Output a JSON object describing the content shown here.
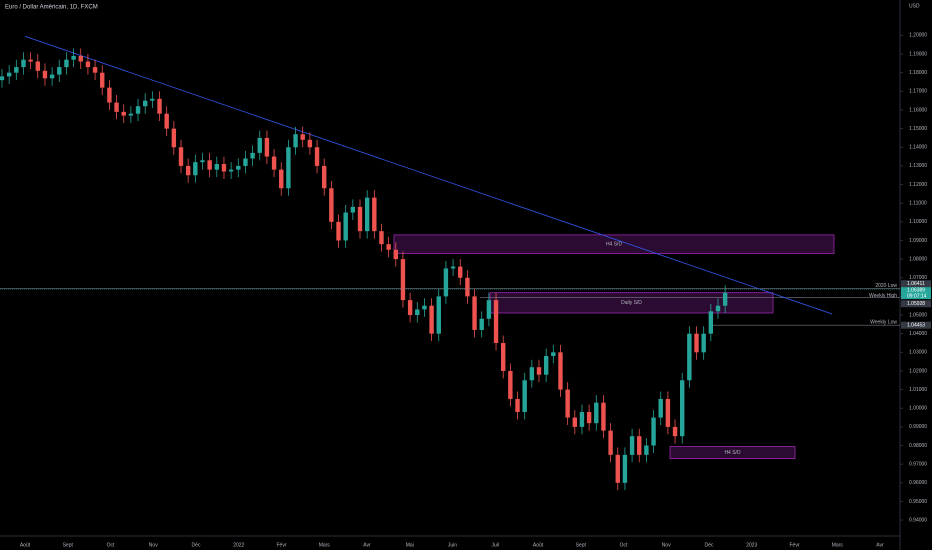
{
  "chart_data": {
    "type": "candlestick",
    "title": "Euro / Dollar Américain, 1D, FXCM",
    "currency": "USD",
    "categories": [
      "Août",
      "Sept",
      "Oct",
      "Nov",
      "Déc",
      "2022",
      "Févr",
      "Mars",
      "Avr",
      "Mai",
      "Juin",
      "Juil",
      "Août",
      "Sept",
      "Oct",
      "Nov",
      "Déc",
      "2023",
      "Févr",
      "Mars",
      "Avr"
    ],
    "up_color": "#26a69a",
    "down_color": "#ef5350",
    "ylim": [
      0.932,
      1.219
    ],
    "yticks": [
      {
        "value": 0.94,
        "label": "0.94000"
      },
      {
        "value": 0.95,
        "label": "0.95000"
      },
      {
        "value": 0.96,
        "label": "0.96000"
      },
      {
        "value": 0.97,
        "label": "0.97000"
      },
      {
        "value": 0.98,
        "label": "0.98000"
      },
      {
        "value": 0.99,
        "label": "0.99000"
      },
      {
        "value": 1.0,
        "label": "1.00000"
      },
      {
        "value": 1.01,
        "label": "1.01000"
      },
      {
        "value": 1.02,
        "label": "1.02000"
      },
      {
        "value": 1.03,
        "label": "1.03000"
      },
      {
        "value": 1.04,
        "label": "1.04000"
      },
      {
        "value": 1.05,
        "label": "1.05000"
      },
      {
        "value": 1.06,
        "label": "1.06000"
      },
      {
        "value": 1.07,
        "label": "1.07000"
      },
      {
        "value": 1.08,
        "label": "1.08000"
      },
      {
        "value": 1.09,
        "label": "1.09000"
      },
      {
        "value": 1.1,
        "label": "1.10000"
      },
      {
        "value": 1.11,
        "label": "1.11000"
      },
      {
        "value": 1.12,
        "label": "1.12000"
      },
      {
        "value": 1.13,
        "label": "1.13000"
      },
      {
        "value": 1.14,
        "label": "1.14000"
      },
      {
        "value": 1.15,
        "label": "1.15000"
      },
      {
        "value": 1.16,
        "label": "1.16000"
      },
      {
        "value": 1.17,
        "label": "1.17000"
      },
      {
        "value": 1.18,
        "label": "1.18000"
      },
      {
        "value": 1.19,
        "label": "1.19000"
      },
      {
        "value": 1.2,
        "label": "1.20000"
      }
    ],
    "candles": [
      [
        1.176,
        1.182,
        1.172,
        1.178
      ],
      [
        1.178,
        1.184,
        1.174,
        1.18
      ],
      [
        1.18,
        1.187,
        1.176,
        1.183
      ],
      [
        1.183,
        1.191,
        1.179,
        1.187
      ],
      [
        1.187,
        1.191,
        1.182,
        1.186
      ],
      [
        1.186,
        1.19,
        1.177,
        1.181
      ],
      [
        1.181,
        1.185,
        1.173,
        1.177
      ],
      [
        1.177,
        1.183,
        1.173,
        1.179
      ],
      [
        1.179,
        1.187,
        1.175,
        1.183
      ],
      [
        1.183,
        1.191,
        1.179,
        1.187
      ],
      [
        1.187,
        1.193,
        1.183,
        1.189
      ],
      [
        1.189,
        1.193,
        1.182,
        1.186
      ],
      [
        1.186,
        1.19,
        1.179,
        1.183
      ],
      [
        1.183,
        1.187,
        1.176,
        1.18
      ],
      [
        1.18,
        1.184,
        1.168,
        1.172
      ],
      [
        1.172,
        1.176,
        1.16,
        1.164
      ],
      [
        1.164,
        1.168,
        1.155,
        1.159
      ],
      [
        1.159,
        1.163,
        1.153,
        1.157
      ],
      [
        1.157,
        1.162,
        1.153,
        1.158
      ],
      [
        1.158,
        1.166,
        1.154,
        1.162
      ],
      [
        1.162,
        1.169,
        1.158,
        1.165
      ],
      [
        1.165,
        1.17,
        1.161,
        1.166
      ],
      [
        1.166,
        1.17,
        1.154,
        1.158
      ],
      [
        1.158,
        1.162,
        1.146,
        1.15
      ],
      [
        1.15,
        1.154,
        1.136,
        1.14
      ],
      [
        1.14,
        1.144,
        1.126,
        1.13
      ],
      [
        1.13,
        1.134,
        1.121,
        1.125
      ],
      [
        1.125,
        1.136,
        1.121,
        1.132
      ],
      [
        1.132,
        1.137,
        1.128,
        1.133
      ],
      [
        1.133,
        1.137,
        1.124,
        1.128
      ],
      [
        1.128,
        1.135,
        1.124,
        1.131
      ],
      [
        1.131,
        1.135,
        1.123,
        1.127
      ],
      [
        1.127,
        1.132,
        1.123,
        1.128
      ],
      [
        1.128,
        1.134,
        1.124,
        1.13
      ],
      [
        1.13,
        1.138,
        1.126,
        1.134
      ],
      [
        1.134,
        1.141,
        1.13,
        1.137
      ],
      [
        1.137,
        1.149,
        1.133,
        1.145
      ],
      [
        1.145,
        1.149,
        1.131,
        1.135
      ],
      [
        1.135,
        1.139,
        1.124,
        1.128
      ],
      [
        1.128,
        1.132,
        1.114,
        1.118
      ],
      [
        1.118,
        1.144,
        1.114,
        1.14
      ],
      [
        1.14,
        1.151,
        1.136,
        1.147
      ],
      [
        1.147,
        1.151,
        1.14,
        1.144
      ],
      [
        1.144,
        1.148,
        1.136,
        1.14
      ],
      [
        1.14,
        1.144,
        1.126,
        1.13
      ],
      [
        1.13,
        1.134,
        1.114,
        1.118
      ],
      [
        1.118,
        1.122,
        1.096,
        1.1
      ],
      [
        1.1,
        1.104,
        1.086,
        1.09
      ],
      [
        1.09,
        1.109,
        1.086,
        1.105
      ],
      [
        1.105,
        1.112,
        1.101,
        1.108
      ],
      [
        1.108,
        1.112,
        1.091,
        1.095
      ],
      [
        1.095,
        1.117,
        1.091,
        1.113
      ],
      [
        1.113,
        1.117,
        1.091,
        1.095
      ],
      [
        1.095,
        1.099,
        1.084,
        1.088
      ],
      [
        1.088,
        1.092,
        1.081,
        1.085
      ],
      [
        1.085,
        1.089,
        1.076,
        1.08
      ],
      [
        1.08,
        1.084,
        1.054,
        1.058
      ],
      [
        1.058,
        1.062,
        1.046,
        1.05
      ],
      [
        1.05,
        1.057,
        1.046,
        1.053
      ],
      [
        1.053,
        1.059,
        1.049,
        1.055
      ],
      [
        1.055,
        1.059,
        1.036,
        1.04
      ],
      [
        1.04,
        1.064,
        1.036,
        1.06
      ],
      [
        1.06,
        1.079,
        1.056,
        1.075
      ],
      [
        1.075,
        1.08,
        1.071,
        1.076
      ],
      [
        1.076,
        1.08,
        1.066,
        1.07
      ],
      [
        1.07,
        1.074,
        1.056,
        1.06
      ],
      [
        1.06,
        1.064,
        1.038,
        1.042
      ],
      [
        1.042,
        1.052,
        1.038,
        1.048
      ],
      [
        1.048,
        1.062,
        1.044,
        1.058
      ],
      [
        1.058,
        1.062,
        1.031,
        1.035
      ],
      [
        1.035,
        1.039,
        1.016,
        1.02
      ],
      [
        1.02,
        1.024,
        1.001,
        1.005
      ],
      [
        1.005,
        1.009,
        0.994,
        0.998
      ],
      [
        0.998,
        1.019,
        0.994,
        1.015
      ],
      [
        1.015,
        1.026,
        1.011,
        1.022
      ],
      [
        1.022,
        1.026,
        1.014,
        1.018
      ],
      [
        1.018,
        1.032,
        1.014,
        1.028
      ],
      [
        1.028,
        1.034,
        1.024,
        1.03
      ],
      [
        1.03,
        1.034,
        1.006,
        1.01
      ],
      [
        1.01,
        1.014,
        0.991,
        0.995
      ],
      [
        0.995,
        0.999,
        0.986,
        0.99
      ],
      [
        0.99,
        1.002,
        0.986,
        0.998
      ],
      [
        0.998,
        1.002,
        0.988,
        0.992
      ],
      [
        0.992,
        1.007,
        0.988,
        1.003
      ],
      [
        1.003,
        1.007,
        0.984,
        0.988
      ],
      [
        0.988,
        0.992,
        0.971,
        0.975
      ],
      [
        0.975,
        0.979,
        0.956,
        0.96
      ],
      [
        0.96,
        0.979,
        0.956,
        0.975
      ],
      [
        0.975,
        0.989,
        0.971,
        0.985
      ],
      [
        0.985,
        0.989,
        0.971,
        0.975
      ],
      [
        0.975,
        0.984,
        0.971,
        0.98
      ],
      [
        0.98,
        0.999,
        0.976,
        0.995
      ],
      [
        0.995,
        1.009,
        0.991,
        1.005
      ],
      [
        1.005,
        1.009,
        0.986,
        0.99
      ],
      [
        0.99,
        0.994,
        0.981,
        0.985
      ],
      [
        0.985,
        1.019,
        0.981,
        1.015
      ],
      [
        1.015,
        1.044,
        1.011,
        1.04
      ],
      [
        1.04,
        1.044,
        1.026,
        1.03
      ],
      [
        1.03,
        1.044,
        1.026,
        1.04
      ],
      [
        1.04,
        1.056,
        1.036,
        1.052
      ],
      [
        1.052,
        1.059,
        1.048,
        1.055
      ],
      [
        1.055,
        1.066,
        1.051,
        1.062
      ]
    ],
    "trendline": {
      "color": "#2f4fd8",
      "values": [
        1.1995,
        1.0506
      ]
    },
    "zones": [
      {
        "label": "H4 S/D",
        "top": 1.093,
        "bottom": 1.083
      },
      {
        "label": "Daily S/D",
        "top": 1.062,
        "bottom": 1.0511
      },
      {
        "label": "H4 S/D",
        "top": 0.9795,
        "bottom": 0.973
      }
    ],
    "levels": [
      {
        "label": "2020 Low",
        "value": {
          "value": 1.06411,
          "label": "1.06411"
        }
      },
      {
        "label": "Weekly High",
        "value": {
          "value": 1.05928,
          "label": "1.05928"
        }
      },
      {
        "label": "Weekly Low",
        "value": {
          "value": 1.04453,
          "label": "1.04453"
        }
      }
    ],
    "last_price": {
      "value": 1.06389,
      "label": "1.06389"
    },
    "countdown": "09:07:14"
  }
}
